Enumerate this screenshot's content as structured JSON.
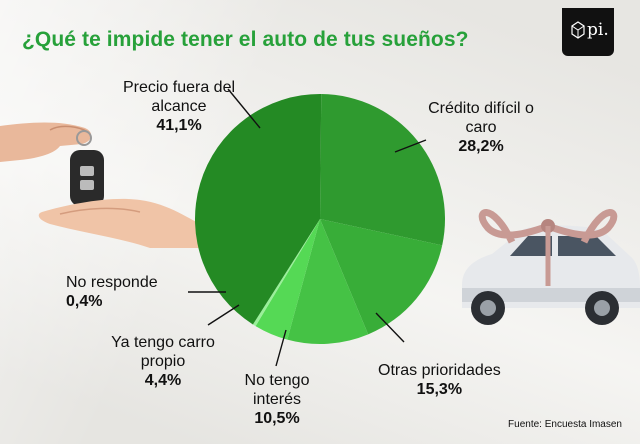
{
  "header": {
    "title": "¿Qué te impide tener el auto de tus sueños?",
    "logo_text": "pi."
  },
  "footer": {
    "source": "Fuente: Encuesta Imasen"
  },
  "chart_data": {
    "type": "pie",
    "title": "¿Qué te impide tener el auto de tus sueños?",
    "slices": [
      {
        "label": "Crédito difícil o caro",
        "value": 28.2,
        "display": "28,2%",
        "color": "#2f9a2f"
      },
      {
        "label": "Otras prioridades",
        "value": 15.3,
        "display": "15,3%",
        "color": "#38ad38"
      },
      {
        "label": "No tengo interés",
        "value": 10.5,
        "display": "10,5%",
        "color": "#45c245"
      },
      {
        "label": "Ya tengo carro propio",
        "value": 4.4,
        "display": "4,4%",
        "color": "#55d955"
      },
      {
        "label": "No responde",
        "value": 0.4,
        "display": "0,4%",
        "color": "#9af09a"
      },
      {
        "label": "Precio fuera del alcance",
        "value": 41.1,
        "display": "41,1%",
        "color": "#248a24"
      }
    ],
    "legend": "callout labels"
  }
}
